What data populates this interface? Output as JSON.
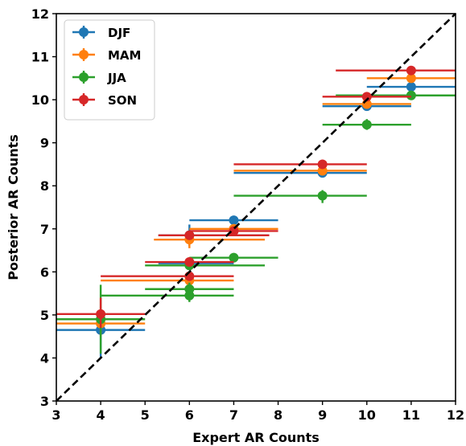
{
  "chart_data": {
    "type": "scatter",
    "title": "",
    "xlabel": "Expert AR Counts",
    "ylabel": "Posterior AR Counts",
    "xlim": [
      3,
      12
    ],
    "ylim": [
      3,
      12
    ],
    "xticks": [
      "3",
      "4",
      "5",
      "6",
      "7",
      "8",
      "9",
      "10",
      "11",
      "12"
    ],
    "yticks": [
      "3",
      "4",
      "5",
      "6",
      "7",
      "8",
      "9",
      "10",
      "11",
      "12"
    ],
    "grid": false,
    "legend_position": "top-left",
    "reference_line": {
      "style": "dashed",
      "color": "#000000",
      "from": [
        3,
        3
      ],
      "to": [
        12,
        12
      ]
    },
    "series": [
      {
        "name": "DJF",
        "color": "#1f77b4",
        "points": [
          {
            "x": 4,
            "y": 4.65,
            "xerr": [
              3.0,
              5.0
            ],
            "yerr": [
              4.0,
              4.9
            ]
          },
          {
            "x": 6,
            "y": 6.2,
            "xerr": [
              5.3,
              7.0
            ],
            "yerr": [
              6.1,
              6.3
            ]
          },
          {
            "x": 6,
            "y": 6.85,
            "xerr": [
              5.3,
              7.8
            ],
            "yerr": [
              6.6,
              7.1
            ]
          },
          {
            "x": 7,
            "y": 7.2,
            "xerr": [
              6.0,
              8.0
            ],
            "yerr": [
              7.1,
              7.3
            ]
          },
          {
            "x": 9,
            "y": 8.3,
            "xerr": [
              7.0,
              10.0
            ],
            "yerr": [
              8.2,
              8.4
            ]
          },
          {
            "x": 10,
            "y": 9.85,
            "xerr": [
              9.0,
              11.0
            ],
            "yerr": [
              9.75,
              9.95
            ]
          },
          {
            "x": 11,
            "y": 10.3,
            "xerr": [
              10.0,
              12.0
            ],
            "yerr": [
              10.2,
              10.4
            ]
          }
        ]
      },
      {
        "name": "MAM",
        "color": "#ff7f0e",
        "points": [
          {
            "x": 4,
            "y": 4.8,
            "xerr": [
              3.0,
              5.0
            ],
            "yerr": [
              4.5,
              5.1
            ]
          },
          {
            "x": 6,
            "y": 5.8,
            "xerr": [
              4.0,
              7.0
            ],
            "yerr": [
              5.6,
              6.0
            ]
          },
          {
            "x": 6,
            "y": 6.75,
            "xerr": [
              5.2,
              7.7
            ],
            "yerr": [
              6.55,
              6.95
            ]
          },
          {
            "x": 7,
            "y": 7.0,
            "xerr": [
              6.0,
              8.0
            ],
            "yerr": [
              6.9,
              7.1
            ]
          },
          {
            "x": 9,
            "y": 8.35,
            "xerr": [
              7.0,
              10.0
            ],
            "yerr": [
              8.25,
              8.45
            ]
          },
          {
            "x": 10,
            "y": 9.9,
            "xerr": [
              9.0,
              11.0
            ],
            "yerr": [
              9.8,
              10.0
            ]
          },
          {
            "x": 11,
            "y": 10.5,
            "xerr": [
              10.0,
              12.0
            ],
            "yerr": [
              10.4,
              10.6
            ]
          }
        ]
      },
      {
        "name": "JJA",
        "color": "#2ca02c",
        "points": [
          {
            "x": 4,
            "y": 4.9,
            "xerr": [
              3.0,
              5.0
            ],
            "yerr": [
              4.1,
              5.7
            ]
          },
          {
            "x": 6,
            "y": 5.45,
            "xerr": [
              4.0,
              7.0
            ],
            "yerr": [
              5.3,
              5.6
            ]
          },
          {
            "x": 6,
            "y": 5.6,
            "xerr": [
              5.0,
              7.0
            ],
            "yerr": [
              5.45,
              5.75
            ]
          },
          {
            "x": 6,
            "y": 6.15,
            "xerr": [
              5.0,
              7.7
            ],
            "yerr": [
              6.05,
              6.25
            ]
          },
          {
            "x": 7,
            "y": 6.33,
            "xerr": [
              6.0,
              8.0
            ],
            "yerr": [
              6.25,
              6.41
            ]
          },
          {
            "x": 9,
            "y": 7.77,
            "xerr": [
              7.0,
              10.0
            ],
            "yerr": [
              7.6,
              7.9
            ]
          },
          {
            "x": 10,
            "y": 9.42,
            "xerr": [
              9.0,
              11.0
            ],
            "yerr": [
              9.3,
              9.55
            ]
          },
          {
            "x": 11,
            "y": 10.1,
            "xerr": [
              9.3,
              12.0
            ],
            "yerr": [
              10.0,
              10.2
            ]
          }
        ]
      },
      {
        "name": "SON",
        "color": "#d62728",
        "points": [
          {
            "x": 4,
            "y": 5.02,
            "xerr": [
              3.0,
              5.0
            ],
            "yerr": [
              4.7,
              5.4
            ]
          },
          {
            "x": 6,
            "y": 5.9,
            "xerr": [
              4.0,
              7.0
            ],
            "yerr": [
              5.8,
              6.0
            ]
          },
          {
            "x": 6,
            "y": 6.23,
            "xerr": [
              5.0,
              7.0
            ],
            "yerr": [
              6.13,
              6.33
            ]
          },
          {
            "x": 6,
            "y": 6.85,
            "xerr": [
              5.3,
              7.8
            ],
            "yerr": [
              6.75,
              6.95
            ]
          },
          {
            "x": 7,
            "y": 6.95,
            "xerr": [
              6.0,
              8.0
            ],
            "yerr": [
              6.85,
              7.05
            ]
          },
          {
            "x": 9,
            "y": 8.5,
            "xerr": [
              7.0,
              10.0
            ],
            "yerr": [
              8.4,
              8.6
            ]
          },
          {
            "x": 10,
            "y": 10.07,
            "xerr": [
              9.0,
              11.0
            ],
            "yerr": [
              9.97,
              10.17
            ]
          },
          {
            "x": 11,
            "y": 10.68,
            "xerr": [
              9.3,
              12.0
            ],
            "yerr": [
              10.58,
              10.78
            ]
          }
        ]
      }
    ]
  }
}
